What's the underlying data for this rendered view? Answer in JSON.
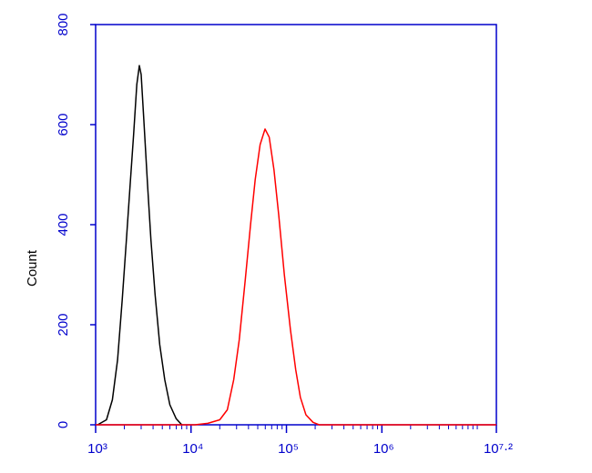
{
  "chart_data": {
    "type": "line",
    "ylabel": "Count",
    "xscale": "log",
    "axis_color": "#0000cc",
    "xlim": [
      1000,
      15848931.92
    ],
    "ylim": [
      0,
      800
    ],
    "yticks": [
      0,
      200,
      400,
      600,
      800
    ],
    "xticks": [
      {
        "value": 1000,
        "label": "10³"
      },
      {
        "value": 10000,
        "label": "10⁴"
      },
      {
        "value": 100000,
        "label": "10⁵"
      },
      {
        "value": 1000000,
        "label": "10⁶"
      },
      {
        "value": 15848931.92,
        "label": "10⁷·²"
      }
    ],
    "xminorticks": [
      2000,
      3000,
      4000,
      5000,
      6000,
      7000,
      8000,
      9000,
      20000,
      30000,
      40000,
      50000,
      60000,
      70000,
      80000,
      90000,
      200000,
      300000,
      400000,
      500000,
      600000,
      700000,
      800000,
      900000,
      2000000,
      3000000,
      4000000,
      5000000,
      6000000,
      7000000,
      8000000,
      9000000,
      10000000
    ],
    "series": [
      {
        "color": "#000000",
        "x": [
          1050,
          1300,
          1500,
          1700,
          1900,
          2100,
          2300,
          2500,
          2700,
          2870,
          3000,
          3200,
          3500,
          3800,
          4200,
          4700,
          5300,
          6000,
          7000,
          8000
        ],
        "values": [
          0,
          10,
          50,
          130,
          250,
          370,
          480,
          580,
          680,
          718,
          700,
          610,
          480,
          370,
          260,
          160,
          90,
          40,
          12,
          0
        ]
      },
      {
        "color": "#ff0000",
        "x": [
          1000,
          5000,
          11000,
          15000,
          20000,
          24000,
          28000,
          32000,
          37000,
          42000,
          47000,
          53000,
          59600,
          66000,
          74000,
          83000,
          95000,
          110000,
          125000,
          140000,
          160000,
          190000,
          220000,
          15848931.92
        ],
        "values": [
          0,
          0,
          0,
          3,
          10,
          30,
          90,
          170,
          290,
          400,
          490,
          560,
          591,
          575,
          510,
          420,
          300,
          190,
          110,
          55,
          20,
          5,
          0,
          0
        ]
      }
    ]
  }
}
